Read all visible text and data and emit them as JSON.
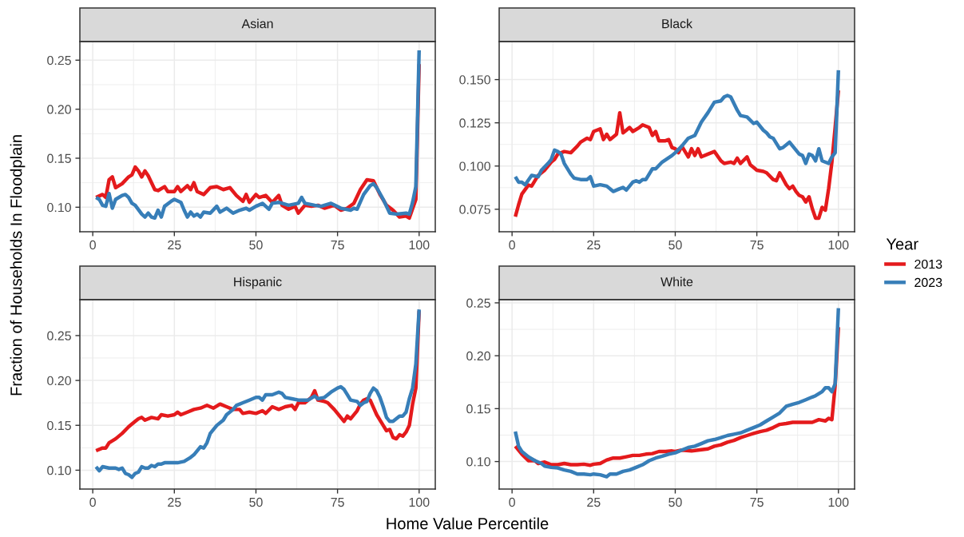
{
  "chart_data": [
    {
      "type": "line",
      "title": "Asian",
      "legend": "right",
      "legend_title": "Year",
      "ylabel": "Fraction of Households In Floodplain",
      "xlim": [
        -3.95,
        104.95
      ],
      "xticks": [
        0,
        25,
        50,
        75,
        100
      ],
      "ylim": [
        0.075,
        0.269
      ],
      "yticks": [
        {
          "value": 0.1,
          "label": "0.10"
        },
        0.15,
        {
          "value": 0.2,
          "label": "0.20"
        },
        0.25
      ],
      "grid": true,
      "line_style": "solid",
      "marker": "none",
      "series": [
        {
          "name": "2013",
          "color": "#e41a1c",
          "x": [
            1,
            3,
            4,
            5,
            6,
            7,
            9,
            11,
            12,
            13,
            14,
            15,
            16,
            17,
            19,
            20,
            22,
            23,
            25,
            26,
            27,
            29,
            30,
            31,
            32,
            34,
            36,
            38,
            40,
            42,
            44,
            46,
            47,
            48,
            50,
            51,
            53,
            55,
            57,
            58,
            60,
            62,
            63,
            65,
            67,
            69,
            71,
            74,
            76,
            78,
            80,
            82,
            84,
            86,
            88,
            90,
            92,
            94,
            96,
            97,
            99,
            100
          ],
          "values": [
            0.11,
            0.113,
            0.11,
            0.128,
            0.131,
            0.12,
            0.124,
            0.131,
            0.133,
            0.141,
            0.137,
            0.131,
            0.137,
            0.132,
            0.118,
            0.117,
            0.121,
            0.116,
            0.116,
            0.121,
            0.116,
            0.122,
            0.118,
            0.125,
            0.116,
            0.113,
            0.12,
            0.121,
            0.118,
            0.12,
            0.112,
            0.106,
            0.113,
            0.105,
            0.113,
            0.11,
            0.112,
            0.105,
            0.112,
            0.102,
            0.098,
            0.101,
            0.094,
            0.102,
            0.101,
            0.102,
            0.099,
            0.102,
            0.097,
            0.099,
            0.104,
            0.118,
            0.128,
            0.127,
            0.113,
            0.102,
            0.097,
            0.09,
            0.091,
            0.089,
            0.108,
            0.246
          ]
        },
        {
          "name": "2023",
          "color": "#377eb8",
          "x": [
            1,
            2,
            3,
            4,
            5,
            6,
            7,
            9,
            10,
            11,
            12,
            13,
            15,
            16,
            17,
            18,
            19,
            20,
            21,
            22,
            24,
            25,
            27,
            28,
            29,
            30,
            31,
            32,
            33,
            34,
            36,
            38,
            39,
            41,
            43,
            45,
            47,
            48,
            50,
            52,
            54,
            55,
            57,
            60,
            63,
            64,
            65,
            68,
            70,
            73,
            76,
            79,
            80,
            81,
            83,
            85,
            86,
            87,
            89,
            91,
            93,
            96,
            97,
            98,
            99,
            100
          ],
          "values": [
            0.11,
            0.108,
            0.102,
            0.101,
            0.114,
            0.099,
            0.108,
            0.112,
            0.113,
            0.11,
            0.104,
            0.102,
            0.093,
            0.09,
            0.094,
            0.09,
            0.089,
            0.097,
            0.09,
            0.101,
            0.106,
            0.108,
            0.105,
            0.097,
            0.09,
            0.095,
            0.091,
            0.093,
            0.09,
            0.095,
            0.094,
            0.101,
            0.095,
            0.099,
            0.094,
            0.097,
            0.099,
            0.097,
            0.101,
            0.104,
            0.098,
            0.104,
            0.105,
            0.102,
            0.104,
            0.11,
            0.104,
            0.102,
            0.101,
            0.104,
            0.099,
            0.097,
            0.099,
            0.098,
            0.113,
            0.122,
            0.124,
            0.12,
            0.108,
            0.094,
            0.093,
            0.094,
            0.093,
            0.105,
            0.121,
            0.26
          ]
        }
      ]
    },
    {
      "type": "line",
      "title": "Black",
      "xlim": [
        -3.95,
        104.95
      ],
      "xticks": [
        0,
        25,
        50,
        75,
        100
      ],
      "ylim": [
        0.062,
        0.172
      ],
      "yticks": [
        0.075,
        {
          "value": 0.1,
          "label": "0.100"
        },
        0.125,
        {
          "value": 0.15,
          "label": "0.150"
        }
      ],
      "grid": true,
      "line_style": "solid",
      "marker": "none",
      "series": [
        {
          "name": "2013",
          "color": "#e41a1c",
          "x": [
            1,
            2,
            3,
            5,
            6,
            8,
            10,
            12,
            13,
            14,
            16,
            18,
            20,
            21,
            23,
            24,
            25,
            27,
            28,
            29,
            30,
            32,
            33,
            34,
            35,
            36,
            37,
            39,
            40,
            42,
            43,
            44,
            45,
            47,
            48,
            49,
            50,
            51,
            52,
            53,
            54,
            55,
            56,
            57,
            58,
            60,
            62,
            64,
            65,
            67,
            68,
            69,
            70,
            72,
            73,
            74,
            75,
            77,
            78,
            80,
            81,
            82,
            84,
            85,
            86,
            87,
            88,
            89,
            90,
            91,
            92,
            93,
            94,
            95,
            96,
            97,
            98,
            99,
            100
          ],
          "values": [
            0.0707,
            0.0776,
            0.0838,
            0.089,
            0.0884,
            0.0946,
            0.0976,
            0.1023,
            0.1038,
            0.1069,
            0.1084,
            0.1077,
            0.1115,
            0.1138,
            0.1161,
            0.1153,
            0.12,
            0.1215,
            0.1153,
            0.1184,
            0.1153,
            0.1184,
            0.1308,
            0.1192,
            0.1207,
            0.1223,
            0.12,
            0.1223,
            0.1238,
            0.1223,
            0.1177,
            0.12,
            0.1146,
            0.1146,
            0.1153,
            0.1107,
            0.11,
            0.1077,
            0.1115,
            0.1084,
            0.1053,
            0.11,
            0.1061,
            0.11,
            0.1053,
            0.1069,
            0.1084,
            0.103,
            0.1015,
            0.1023,
            0.1015,
            0.1046,
            0.1015,
            0.1053,
            0.1007,
            0.0992,
            0.0976,
            0.0969,
            0.0961,
            0.0922,
            0.0915,
            0.0961,
            0.0892,
            0.0869,
            0.0884,
            0.0853,
            0.083,
            0.0822,
            0.0792,
            0.0822,
            0.0753,
            0.0699,
            0.0699,
            0.0761,
            0.0745,
            0.0869,
            0.1023,
            0.1223,
            0.1438
          ]
        },
        {
          "name": "2023",
          "color": "#377eb8",
          "x": [
            1,
            2,
            3,
            4,
            6,
            8,
            9,
            11,
            12,
            13,
            14,
            15,
            16,
            18,
            19,
            21,
            23,
            24,
            25,
            27,
            29,
            31,
            33,
            34,
            35,
            37,
            38,
            39,
            40,
            41,
            43,
            44,
            46,
            49,
            50,
            52,
            54,
            56,
            58,
            60,
            62,
            64,
            65,
            66,
            67,
            69,
            70,
            72,
            74,
            75,
            77,
            78,
            79,
            80,
            82,
            83,
            85,
            86,
            87,
            88,
            89,
            90,
            91,
            92,
            93,
            94,
            95,
            97,
            98,
            99,
            100
          ],
          "values": [
            0.0938,
            0.0907,
            0.0907,
            0.0892,
            0.0946,
            0.0938,
            0.0976,
            0.1015,
            0.1038,
            0.1092,
            0.1084,
            0.1069,
            0.1015,
            0.0953,
            0.093,
            0.0922,
            0.0922,
            0.0938,
            0.0884,
            0.0892,
            0.0884,
            0.0853,
            0.0869,
            0.0876,
            0.0861,
            0.0907,
            0.0915,
            0.0907,
            0.0922,
            0.0922,
            0.0984,
            0.0984,
            0.1023,
            0.1061,
            0.1077,
            0.1115,
            0.1161,
            0.1177,
            0.1254,
            0.1308,
            0.1369,
            0.1377,
            0.14,
            0.1408,
            0.14,
            0.1323,
            0.1292,
            0.1284,
            0.1246,
            0.1254,
            0.1207,
            0.1192,
            0.1169,
            0.1161,
            0.11,
            0.1107,
            0.1138,
            0.1115,
            0.1092,
            0.1069,
            0.1061,
            0.1015,
            0.1069,
            0.1061,
            0.103,
            0.11,
            0.103,
            0.1015,
            0.1053,
            0.1077,
            0.1554
          ]
        }
      ]
    },
    {
      "type": "line",
      "title": "Hispanic",
      "xlabel": "Home Value Percentile",
      "xlim": [
        -3.95,
        104.95
      ],
      "xticks": [
        0,
        25,
        50,
        75,
        100
      ],
      "ylim": [
        0.079,
        0.29
      ],
      "yticks": [
        {
          "value": 0.1,
          "label": "0.10"
        },
        0.15,
        {
          "value": 0.2,
          "label": "0.20"
        },
        0.25
      ],
      "grid": true,
      "line_style": "solid",
      "marker": "none",
      "series": [
        {
          "name": "2013",
          "color": "#e41a1c",
          "x": [
            1,
            3,
            4,
            5,
            7,
            9,
            11,
            13,
            14,
            15,
            16,
            18,
            20,
            21,
            23,
            25,
            26,
            27,
            29,
            31,
            33,
            35,
            37,
            39,
            41,
            43,
            45,
            46,
            48,
            50,
            52,
            53,
            55,
            57,
            59,
            61,
            62,
            63,
            65,
            67,
            68,
            69,
            71,
            72,
            74,
            76,
            77,
            78,
            79,
            81,
            82,
            83,
            84,
            85,
            87,
            89,
            90,
            91,
            92,
            93,
            94,
            95,
            96,
            97,
            98,
            99,
            100
          ],
          "values": [
            0.1217,
            0.1247,
            0.1247,
            0.1306,
            0.135,
            0.141,
            0.1484,
            0.1544,
            0.1573,
            0.1588,
            0.1558,
            0.1588,
            0.1573,
            0.1618,
            0.1603,
            0.1618,
            0.1647,
            0.1618,
            0.1647,
            0.1677,
            0.1692,
            0.1722,
            0.1692,
            0.1737,
            0.1707,
            0.1677,
            0.1677,
            0.1633,
            0.1647,
            0.1633,
            0.1662,
            0.1633,
            0.1707,
            0.1677,
            0.1707,
            0.1722,
            0.1677,
            0.1751,
            0.1751,
            0.1811,
            0.1885,
            0.1781,
            0.1766,
            0.1751,
            0.1677,
            0.1588,
            0.1544,
            0.1603,
            0.1573,
            0.1662,
            0.1737,
            0.1781,
            0.1796,
            0.1781,
            0.1618,
            0.1499,
            0.144,
            0.1454,
            0.1365,
            0.135,
            0.1395,
            0.138,
            0.1425,
            0.1499,
            0.1737,
            0.1915,
            0.2776
          ]
        },
        {
          "name": "2023",
          "color": "#377eb8",
          "x": [
            1,
            2,
            3,
            5,
            7,
            8,
            9,
            10,
            11,
            12,
            13,
            14,
            15,
            16,
            17,
            18,
            19,
            20,
            21,
            22,
            24,
            26,
            28,
            30,
            31,
            33,
            34,
            35,
            36,
            38,
            40,
            41,
            43,
            44,
            46,
            48,
            50,
            51,
            52,
            53,
            55,
            57,
            58,
            59,
            61,
            63,
            66,
            68,
            69,
            71,
            73,
            75,
            76,
            77,
            78,
            79,
            81,
            82,
            83,
            84,
            85,
            86,
            87,
            88,
            89,
            90,
            91,
            92,
            93,
            94,
            95,
            96,
            97,
            98,
            99,
            100
          ],
          "values": [
            0.1039,
            0.0994,
            0.1039,
            0.1024,
            0.1024,
            0.1009,
            0.1024,
            0.0964,
            0.095,
            0.092,
            0.0964,
            0.0979,
            0.1039,
            0.1024,
            0.1024,
            0.1053,
            0.1039,
            0.1068,
            0.1068,
            0.1083,
            0.1083,
            0.1083,
            0.1098,
            0.1143,
            0.1172,
            0.1261,
            0.1247,
            0.1306,
            0.141,
            0.1499,
            0.1558,
            0.1618,
            0.1677,
            0.1722,
            0.1751,
            0.1781,
            0.1811,
            0.1811,
            0.1781,
            0.1841,
            0.1841,
            0.187,
            0.1855,
            0.1811,
            0.1796,
            0.1781,
            0.1781,
            0.1826,
            0.1796,
            0.1811,
            0.187,
            0.1915,
            0.193,
            0.19,
            0.1841,
            0.1781,
            0.1766,
            0.1722,
            0.1751,
            0.1766,
            0.1855,
            0.1915,
            0.1885,
            0.1811,
            0.1707,
            0.1588,
            0.1544,
            0.1544,
            0.1573,
            0.1603,
            0.1603,
            0.1647,
            0.1796,
            0.1915,
            0.2182,
            0.2791
          ]
        }
      ]
    },
    {
      "type": "line",
      "title": "White",
      "xlim": [
        -3.95,
        104.95
      ],
      "xticks": [
        0,
        25,
        50,
        75,
        100
      ],
      "ylim": [
        0.074,
        0.253
      ],
      "yticks": [
        {
          "value": 0.1,
          "label": "0.10"
        },
        0.15,
        {
          "value": 0.2,
          "label": "0.20"
        },
        0.25
      ],
      "grid": true,
      "line_style": "solid",
      "marker": "none",
      "series": [
        {
          "name": "2013",
          "color": "#e41a1c",
          "x": [
            1,
            3,
            5,
            7,
            8,
            10,
            12,
            14,
            16,
            18,
            20,
            22,
            24,
            25,
            27,
            29,
            31,
            33,
            35,
            37,
            39,
            41,
            43,
            45,
            47,
            49,
            50,
            52,
            55,
            57,
            60,
            62,
            64,
            66,
            68,
            70,
            72,
            74,
            76,
            78,
            80,
            82,
            84,
            86,
            88,
            90,
            92,
            94,
            96,
            97,
            98,
            99,
            100
          ],
          "values": [
            0.1145,
            0.107,
            0.1008,
            0.1008,
            0.0982,
            0.0995,
            0.097,
            0.097,
            0.0982,
            0.097,
            0.097,
            0.0975,
            0.0965,
            0.0975,
            0.0982,
            0.1015,
            0.1033,
            0.1033,
            0.1045,
            0.1058,
            0.1058,
            0.107,
            0.1075,
            0.1095,
            0.1095,
            0.11,
            0.1095,
            0.1108,
            0.11,
            0.1108,
            0.112,
            0.1145,
            0.1158,
            0.1183,
            0.12,
            0.1226,
            0.1246,
            0.1266,
            0.1283,
            0.1296,
            0.1321,
            0.1351,
            0.1359,
            0.1371,
            0.1371,
            0.1371,
            0.1371,
            0.1396,
            0.1384,
            0.1409,
            0.1396,
            0.172,
            0.227
          ]
        },
        {
          "name": "2023",
          "color": "#377eb8",
          "x": [
            1,
            2,
            3,
            5,
            7,
            9,
            10,
            12,
            14,
            16,
            18,
            20,
            22,
            24,
            25,
            27,
            29,
            30,
            32,
            34,
            36,
            38,
            40,
            42,
            44,
            46,
            48,
            50,
            52,
            54,
            56,
            58,
            60,
            62,
            64,
            66,
            68,
            70,
            72,
            74,
            76,
            78,
            80,
            82,
            84,
            86,
            88,
            90,
            92,
            93,
            95,
            96,
            97,
            98,
            99,
            100
          ],
          "values": [
            0.1283,
            0.1145,
            0.1095,
            0.1045,
            0.1008,
            0.0982,
            0.0957,
            0.0945,
            0.094,
            0.092,
            0.0907,
            0.0882,
            0.0882,
            0.0875,
            0.0882,
            0.0875,
            0.0857,
            0.0882,
            0.0882,
            0.0907,
            0.092,
            0.0945,
            0.097,
            0.1008,
            0.1033,
            0.105,
            0.107,
            0.1083,
            0.1108,
            0.1133,
            0.1145,
            0.117,
            0.1196,
            0.1208,
            0.1226,
            0.1246,
            0.1258,
            0.1271,
            0.1296,
            0.1321,
            0.1346,
            0.1384,
            0.1421,
            0.1459,
            0.1522,
            0.1542,
            0.1559,
            0.1584,
            0.161,
            0.1622,
            0.166,
            0.1697,
            0.1697,
            0.166,
            0.1735,
            0.245
          ]
        }
      ]
    }
  ]
}
